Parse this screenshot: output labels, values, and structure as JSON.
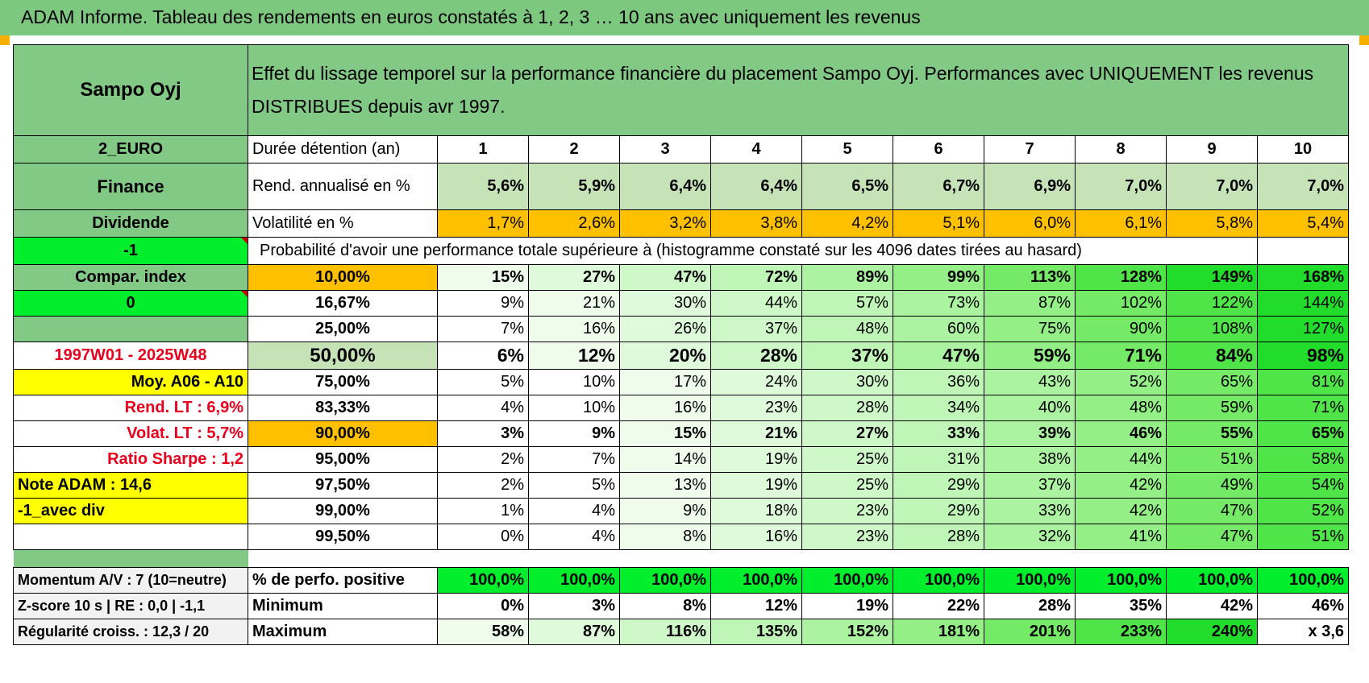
{
  "title": "ADAM Informe. Tableau des rendements en euros constatés à 1, 2, 3 … 10 ans avec uniquement les revenus",
  "header": {
    "name": "Sampo Oyj",
    "description_line1": "Effet du lissage temporel sur la performance financière du placement Sampo Oyj. Performances avec UNIQUEMENT les revenus",
    "description_line2": "DISTRIBUES depuis avr 1997."
  },
  "years_row": {
    "left": "2_EURO",
    "label": "Durée détention (an)",
    "values": [
      "1",
      "2",
      "3",
      "4",
      "5",
      "6",
      "7",
      "8",
      "9",
      "10"
    ]
  },
  "rend_row": {
    "left": "Finance",
    "label": "Rend. annualisé en %",
    "values": [
      "5,6%",
      "5,9%",
      "6,4%",
      "6,4%",
      "6,5%",
      "6,7%",
      "6,9%",
      "7,0%",
      "7,0%",
      "7,0%"
    ]
  },
  "vol_row": {
    "left": "Dividende",
    "label": "Volatilité en %",
    "values": [
      "1,7%",
      "2,6%",
      "3,2%",
      "3,8%",
      "4,2%",
      "5,1%",
      "6,0%",
      "6,1%",
      "5,8%",
      "5,4%"
    ]
  },
  "prob_header": {
    "left": "-1",
    "text": "Probabilité d'avoir une performance totale supérieure à (histogramme constaté sur les 4096 dates tirées au hasard)"
  },
  "prob_rows": [
    {
      "left": "Compar. index",
      "pct": "10,00%",
      "values": [
        "15%",
        "27%",
        "47%",
        "72%",
        "89%",
        "99%",
        "113%",
        "128%",
        "149%",
        "168%"
      ]
    },
    {
      "left": "0",
      "pct": "16,67%",
      "values": [
        "9%",
        "21%",
        "30%",
        "44%",
        "57%",
        "73%",
        "87%",
        "102%",
        "122%",
        "144%"
      ]
    },
    {
      "left": "",
      "pct": "25,00%",
      "values": [
        "7%",
        "16%",
        "26%",
        "37%",
        "48%",
        "60%",
        "75%",
        "90%",
        "108%",
        "127%"
      ]
    },
    {
      "left": "1997W01 - 2025W48",
      "pct": "50,00%",
      "values": [
        "6%",
        "12%",
        "20%",
        "28%",
        "37%",
        "47%",
        "59%",
        "71%",
        "84%",
        "98%"
      ]
    },
    {
      "left": "Moy. A06 - A10",
      "pct": "75,00%",
      "values": [
        "5%",
        "10%",
        "17%",
        "24%",
        "30%",
        "36%",
        "43%",
        "52%",
        "65%",
        "81%"
      ]
    },
    {
      "left": "Rend. LT :    6,9%",
      "pct": "83,33%",
      "values": [
        "4%",
        "10%",
        "16%",
        "23%",
        "28%",
        "34%",
        "40%",
        "48%",
        "59%",
        "71%"
      ]
    },
    {
      "left": "Volat. LT :    5,7%",
      "pct": "90,00%",
      "values": [
        "3%",
        "9%",
        "15%",
        "21%",
        "27%",
        "33%",
        "39%",
        "46%",
        "55%",
        "65%"
      ]
    },
    {
      "left": "Ratio Sharpe :    1,2",
      "pct": "95,00%",
      "values": [
        "2%",
        "7%",
        "14%",
        "19%",
        "25%",
        "31%",
        "38%",
        "44%",
        "51%",
        "58%"
      ]
    },
    {
      "left": "Note ADAM : 14,6",
      "pct": "97,50%",
      "values": [
        "2%",
        "5%",
        "13%",
        "19%",
        "25%",
        "29%",
        "37%",
        "42%",
        "49%",
        "54%"
      ]
    },
    {
      "left": "-1_avec div",
      "pct": "99,00%",
      "values": [
        "1%",
        "4%",
        "9%",
        "18%",
        "23%",
        "29%",
        "33%",
        "42%",
        "47%",
        "52%"
      ]
    },
    {
      "left": "",
      "pct": "99,50%",
      "values": [
        "0%",
        "4%",
        "8%",
        "16%",
        "23%",
        "28%",
        "32%",
        "41%",
        "47%",
        "51%"
      ]
    }
  ],
  "stats_rows": [
    {
      "left": "Momentum A/V : 7 (10=neutre)",
      "label": "% de perfo. positive",
      "values": [
        "100,0%",
        "100,0%",
        "100,0%",
        "100,0%",
        "100,0%",
        "100,0%",
        "100,0%",
        "100,0%",
        "100,0%",
        "100,0%"
      ]
    },
    {
      "left": "Z-score 10 s | RE : 0,0 | -1,1",
      "label": "Minimum",
      "values": [
        "0%",
        "3%",
        "8%",
        "12%",
        "19%",
        "22%",
        "28%",
        "35%",
        "42%",
        "46%"
      ]
    },
    {
      "left": "Régularité croiss. : 12,3 / 20",
      "label": "Maximum",
      "values": [
        "58%",
        "87%",
        "116%",
        "135%",
        "152%",
        "181%",
        "201%",
        "233%",
        "240%",
        "x 3,6"
      ]
    }
  ],
  "colors": {
    "header_green": "#82c985",
    "light_green": "#c6e3b7",
    "orange": "#ffc000",
    "bright_green": "#00ee2c",
    "yellow": "#ffff00",
    "red_text": "#e8001c"
  }
}
